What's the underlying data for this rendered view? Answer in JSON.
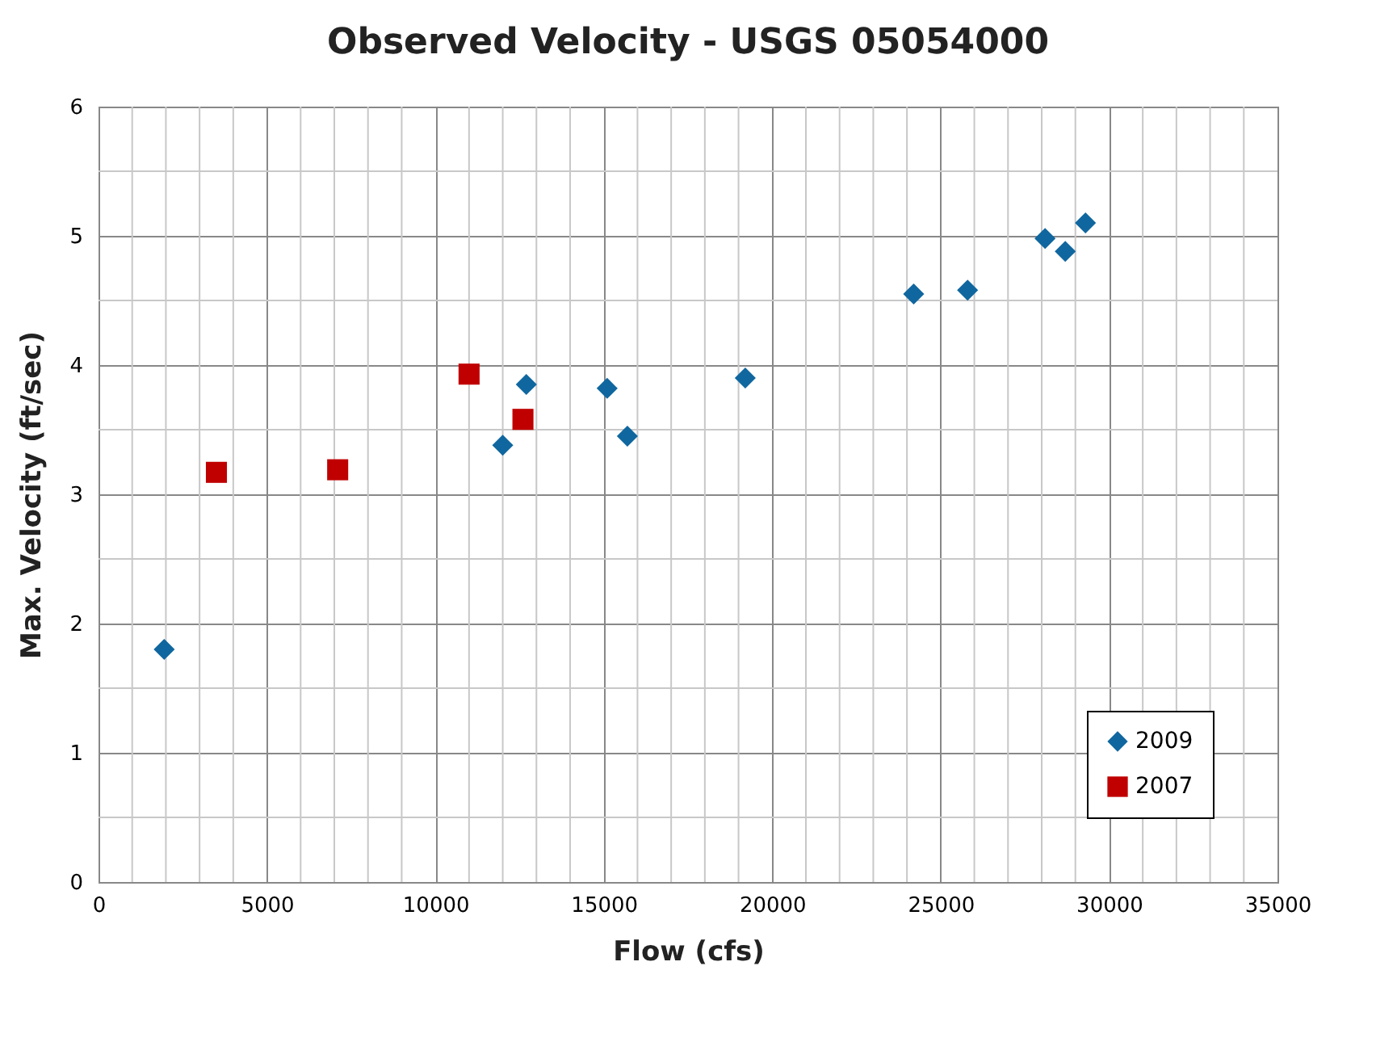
{
  "chart_data": {
    "type": "scatter",
    "title": "Observed Velocity - USGS 05054000",
    "xlabel": "Flow (cfs)",
    "ylabel": "Max. Velocity (ft/sec)",
    "xlim": [
      0,
      35000
    ],
    "xticks": [
      0,
      5000,
      10000,
      15000,
      20000,
      25000,
      30000,
      35000
    ],
    "ylim": [
      0,
      6
    ],
    "yticks": [
      0,
      1,
      2,
      3,
      4,
      5,
      6
    ],
    "grid": true,
    "legend": "bottom right",
    "series": [
      {
        "name": "2009",
        "color": "#10679f",
        "marker": "diamond",
        "x": [
          1950,
          12000,
          12700,
          15100,
          15700,
          19200,
          24200,
          25800,
          28100,
          28700,
          29300
        ],
        "values": [
          1.8,
          3.38,
          3.85,
          3.82,
          3.45,
          3.9,
          4.55,
          4.58,
          4.98,
          4.88,
          5.1
        ]
      },
      {
        "name": "2007",
        "color": "#c00000",
        "marker": "square",
        "x": [
          3500,
          7100,
          11000,
          12600
        ],
        "values": [
          3.17,
          3.19,
          3.93,
          3.58
        ]
      }
    ]
  }
}
